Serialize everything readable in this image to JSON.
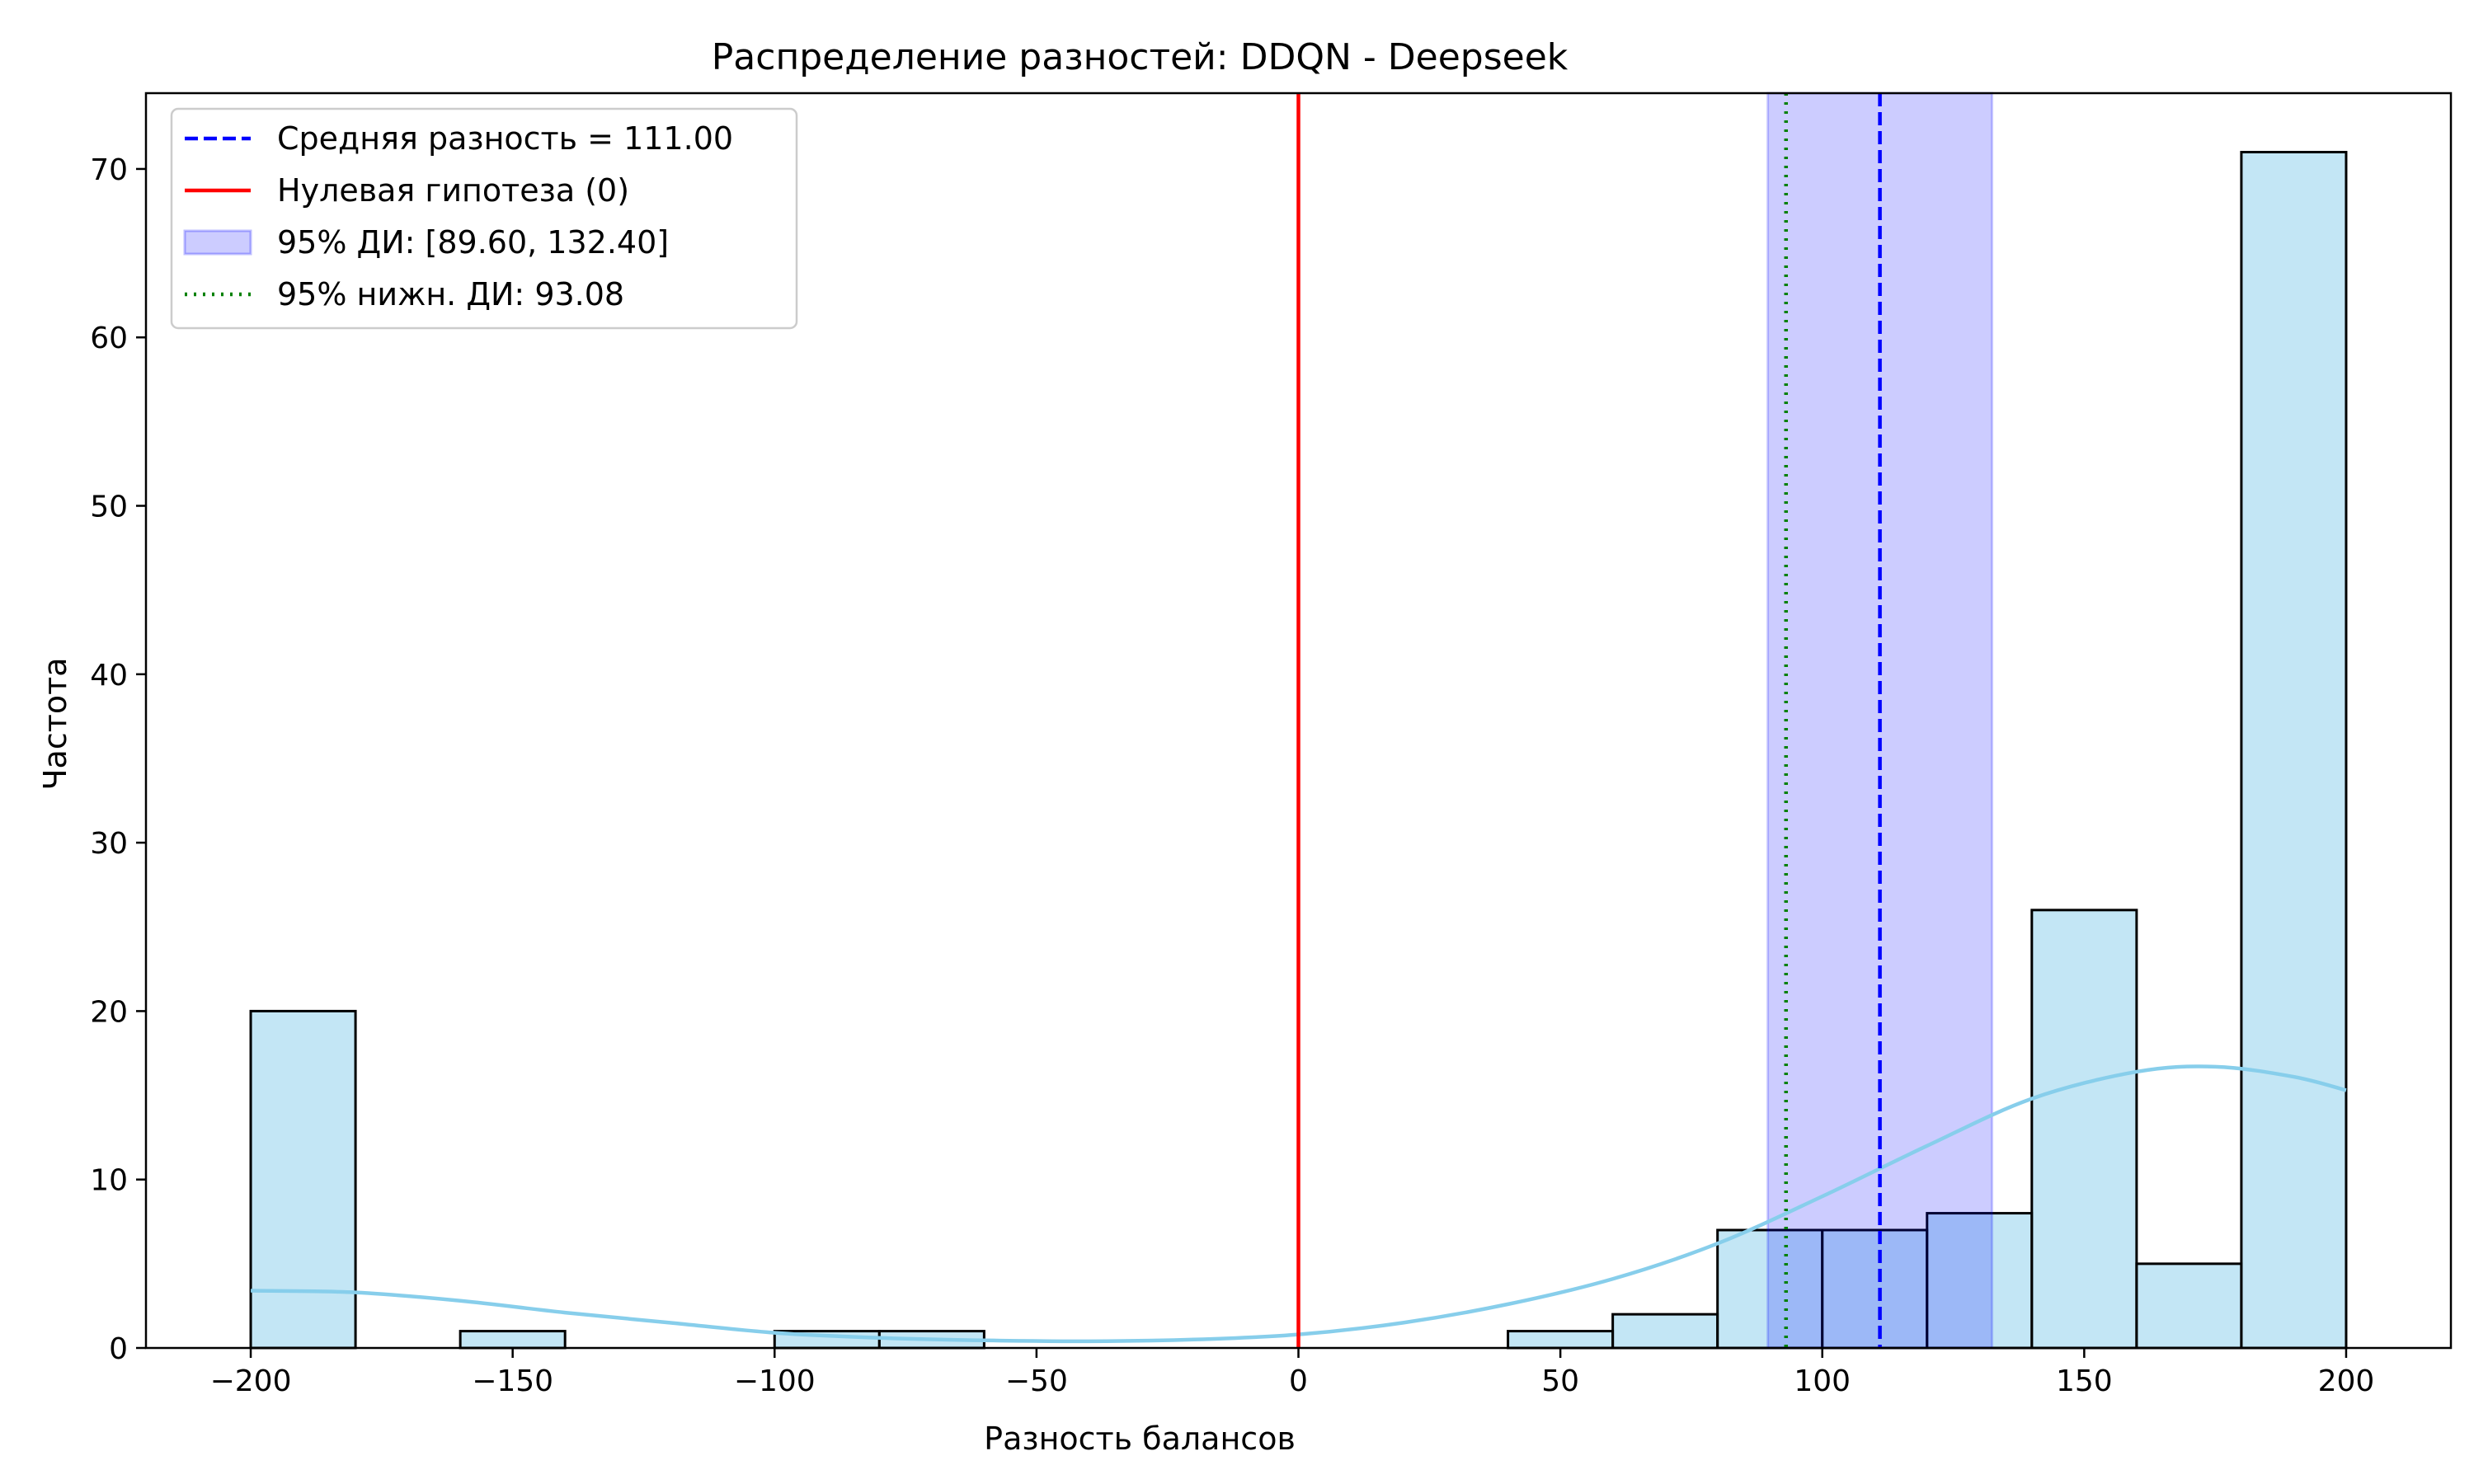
{
  "chart_data": {
    "type": "bar",
    "title": "Распределение разностей: DDQN - Deepseek",
    "xlabel": "Разность балансов",
    "ylabel": "Частота",
    "xlim": [
      -220,
      220
    ],
    "ylim": [
      0,
      74.5
    ],
    "xticks": [
      -200,
      -150,
      -100,
      -50,
      0,
      50,
      100,
      150,
      200
    ],
    "xtick_labels": [
      "−200",
      "−150",
      "−100",
      "−50",
      "0",
      "50",
      "100",
      "150",
      "200"
    ],
    "yticks": [
      0,
      10,
      20,
      30,
      40,
      50,
      60,
      70
    ],
    "ytick_labels": [
      "0",
      "10",
      "20",
      "30",
      "40",
      "50",
      "60",
      "70"
    ],
    "bin_width": 20,
    "bins": [
      {
        "start": -200,
        "count": 20
      },
      {
        "start": -180,
        "count": 0
      },
      {
        "start": -160,
        "count": 1
      },
      {
        "start": -140,
        "count": 0
      },
      {
        "start": -120,
        "count": 0
      },
      {
        "start": -100,
        "count": 1
      },
      {
        "start": -80,
        "count": 1
      },
      {
        "start": -60,
        "count": 0
      },
      {
        "start": -40,
        "count": 0
      },
      {
        "start": -20,
        "count": 0
      },
      {
        "start": 0,
        "count": 0
      },
      {
        "start": 20,
        "count": 0
      },
      {
        "start": 40,
        "count": 1
      },
      {
        "start": 60,
        "count": 2
      },
      {
        "start": 80,
        "count": 7
      },
      {
        "start": 100,
        "count": 7
      },
      {
        "start": 120,
        "count": 8
      },
      {
        "start": 140,
        "count": 26
      },
      {
        "start": 160,
        "count": 5
      },
      {
        "start": 180,
        "count": 71
      }
    ],
    "kde": {
      "x": [
        -200,
        -180,
        -160,
        -140,
        -120,
        -100,
        -80,
        -60,
        -40,
        -20,
        0,
        20,
        40,
        60,
        80,
        100,
        120,
        140,
        160,
        175,
        190,
        200
      ],
      "y": [
        3.4,
        3.3,
        2.8,
        2.1,
        1.5,
        0.9,
        0.6,
        0.45,
        0.4,
        0.5,
        0.8,
        1.5,
        2.6,
        4.1,
        6.2,
        9.0,
        12.0,
        14.8,
        16.4,
        16.7,
        16.1,
        15.3
      ]
    },
    "mean": 111.0,
    "null_hypothesis": 0,
    "ci": [
      89.6,
      132.4
    ],
    "lower_ci": 93.08,
    "grid": false,
    "legend_position": "top-left",
    "legend": [
      {
        "label": "Средняя разность = 111.00",
        "style": "dashed",
        "color": "#0000ff"
      },
      {
        "label": "Нулевая гипотеза (0)",
        "style": "solid",
        "color": "#ff0000"
      },
      {
        "label": "95% ДИ: [89.60, 132.40]",
        "style": "patch",
        "color": "#0000ff"
      },
      {
        "label": "95% нижн. ДИ: 93.08",
        "style": "dotted",
        "color": "#008000"
      }
    ],
    "colors": {
      "bar_fill": "#87ceeb",
      "bar_edge": "#000000",
      "kde": "#87ceeb",
      "mean_line": "#0000ff",
      "null_line": "#ff0000",
      "ci_fill": "#0000ff",
      "lower_ci_line": "#008000"
    }
  }
}
